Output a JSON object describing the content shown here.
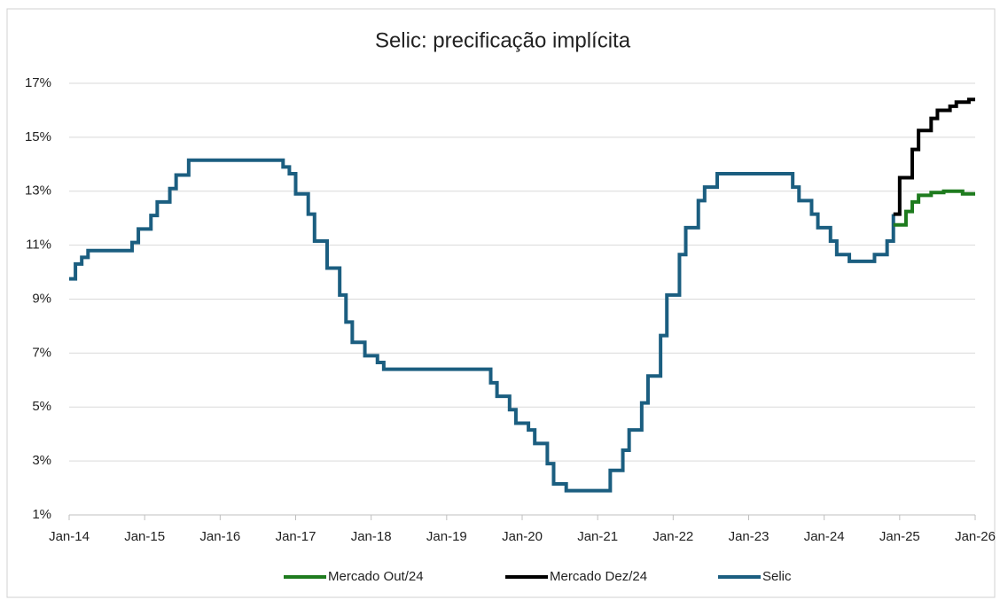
{
  "chart_data": {
    "type": "line",
    "step": true,
    "title": "Selic: precificação implícita",
    "xlim": [
      "2014-01",
      "2026-01"
    ],
    "xticks": [
      {
        "value": "2014-01",
        "label": "Jan-14"
      },
      {
        "value": "2015-01",
        "label": "Jan-15"
      },
      {
        "value": "2016-01",
        "label": "Jan-16"
      },
      {
        "value": "2017-01",
        "label": "Jan-17"
      },
      {
        "value": "2018-01",
        "label": "Jan-18"
      },
      {
        "value": "2019-01",
        "label": "Jan-19"
      },
      {
        "value": "2020-01",
        "label": "Jan-20"
      },
      {
        "value": "2021-01",
        "label": "Jan-21"
      },
      {
        "value": "2022-01",
        "label": "Jan-22"
      },
      {
        "value": "2023-01",
        "label": "Jan-23"
      },
      {
        "value": "2024-01",
        "label": "Jan-24"
      },
      {
        "value": "2025-01",
        "label": "Jan-25"
      },
      {
        "value": "2026-01",
        "label": "Jan-26"
      }
    ],
    "ylim": [
      1,
      17
    ],
    "yticks": [
      {
        "value": 1,
        "label": "1%"
      },
      {
        "value": 3,
        "label": "3%"
      },
      {
        "value": 5,
        "label": "5%"
      },
      {
        "value": 7,
        "label": "7%"
      },
      {
        "value": 9,
        "label": "9%"
      },
      {
        "value": 11,
        "label": "11%"
      },
      {
        "value": 13,
        "label": "13%"
      },
      {
        "value": 15,
        "label": "15%"
      },
      {
        "value": 17,
        "label": "17%"
      }
    ],
    "grid": true,
    "legend": "bottom",
    "series": [
      {
        "name": "Mercado Out/24",
        "color": "#1e7b1e",
        "x": [
          "2024-12",
          "2025-02",
          "2025-03",
          "2025-04",
          "2025-06",
          "2025-08",
          "2025-11",
          "2026-01"
        ],
        "values": [
          11.75,
          12.25,
          12.6,
          12.85,
          12.95,
          13.0,
          12.9,
          12.9
        ]
      },
      {
        "name": "Mercado Dez/24",
        "color": "#000000",
        "x": [
          "2024-12",
          "2025-01",
          "2025-03",
          "2025-04",
          "2025-06",
          "2025-07",
          "2025-09",
          "2025-10",
          "2025-12",
          "2026-01"
        ],
        "values": [
          12.15,
          13.5,
          14.55,
          15.25,
          15.7,
          16.0,
          16.15,
          16.3,
          16.4,
          16.4
        ]
      },
      {
        "name": "Selic",
        "color": "#1b5e80",
        "x": [
          "2014-01",
          "2014-02",
          "2014-03",
          "2014-04",
          "2014-11",
          "2014-12",
          "2015-02",
          "2015-03",
          "2015-05",
          "2015-06",
          "2015-08",
          "2016-11",
          "2016-12",
          "2017-01",
          "2017-03",
          "2017-04",
          "2017-06",
          "2017-08",
          "2017-09",
          "2017-10",
          "2017-12",
          "2018-02",
          "2018-03",
          "2019-08",
          "2019-09",
          "2019-11",
          "2019-12",
          "2020-02",
          "2020-03",
          "2020-05",
          "2020-06",
          "2020-08",
          "2021-03",
          "2021-05",
          "2021-06",
          "2021-08",
          "2021-09",
          "2021-11",
          "2021-12",
          "2022-02",
          "2022-03",
          "2022-05",
          "2022-06",
          "2022-08",
          "2023-08",
          "2023-09",
          "2023-11",
          "2023-12",
          "2024-02",
          "2024-03",
          "2024-05",
          "2024-09",
          "2024-11",
          "2024-12"
        ],
        "values": [
          9.75,
          10.3,
          10.55,
          10.8,
          11.1,
          11.6,
          12.1,
          12.6,
          13.1,
          13.6,
          14.15,
          13.9,
          13.65,
          12.9,
          12.15,
          11.15,
          10.15,
          9.15,
          8.15,
          7.4,
          6.9,
          6.65,
          6.4,
          5.9,
          5.4,
          4.9,
          4.4,
          4.15,
          3.65,
          2.9,
          2.15,
          1.9,
          2.65,
          3.4,
          4.15,
          5.15,
          6.15,
          7.65,
          9.15,
          10.65,
          11.65,
          12.65,
          13.15,
          13.65,
          13.15,
          12.65,
          12.15,
          11.65,
          11.15,
          10.65,
          10.4,
          10.65,
          11.15,
          12.15
        ]
      }
    ]
  }
}
